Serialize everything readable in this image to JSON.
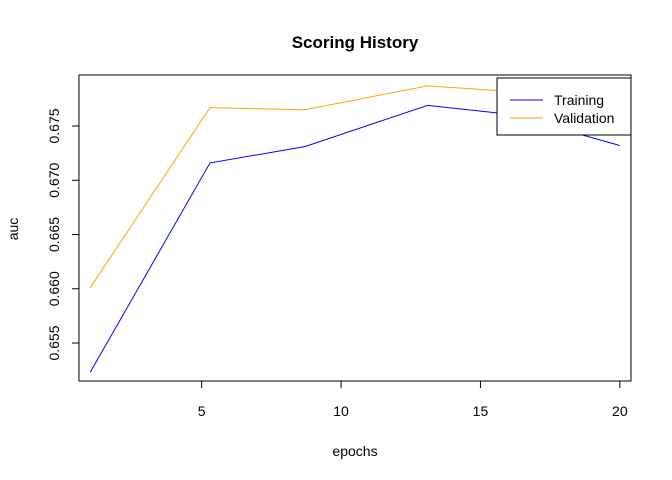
{
  "chart_data": {
    "type": "line",
    "title": "Scoring History",
    "xlabel": "epochs",
    "ylabel": "auc",
    "xlim": [
      0.6,
      20.4
    ],
    "ylim": [
      0.6515,
      0.6797
    ],
    "x_ticks": [
      5,
      10,
      15,
      20
    ],
    "y_ticks": [
      0.655,
      0.66,
      0.665,
      0.67,
      0.675
    ],
    "grid": false,
    "legend": "top-right",
    "series": [
      {
        "name": "Training",
        "color": "#0000ff",
        "points": [
          [
            1.0,
            0.6523
          ],
          [
            5.3,
            0.6716
          ],
          [
            8.7,
            0.6731
          ],
          [
            13.1,
            0.6769
          ],
          [
            16.0,
            0.6761
          ],
          [
            20.0,
            0.6732
          ]
        ]
      },
      {
        "name": "Validation",
        "color": "#ffa500",
        "points": [
          [
            1.0,
            0.6601
          ],
          [
            5.3,
            0.6767
          ],
          [
            8.7,
            0.6765
          ],
          [
            13.1,
            0.6787
          ],
          [
            16.0,
            0.6782
          ],
          [
            20.0,
            0.6779
          ]
        ]
      }
    ]
  }
}
